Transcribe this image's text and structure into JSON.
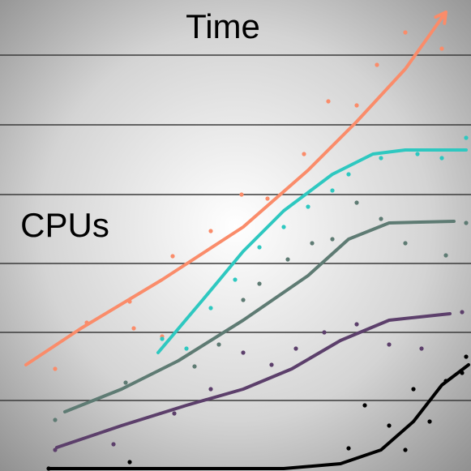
{
  "chart_data": {
    "type": "line",
    "title": "Time",
    "annotation": "CPUs",
    "xlim": [
      0,
      581
    ],
    "ylim": [
      0,
      581
    ],
    "yticks": [
      87,
      171,
      256,
      341,
      427,
      513
    ],
    "grid": true,
    "tick_labels": false,
    "series": [
      {
        "color": "#fa8c6a",
        "arrow": true,
        "x": [
          32,
          100,
          200,
          300,
          380,
          440,
          500,
          550
        ],
        "values": [
          131,
          176,
          236,
          301,
          371,
          431,
          496,
          566
        ],
        "points_x": [
          68,
          107,
          160,
          165,
          200,
          213,
          260,
          298,
          330,
          375,
          405,
          440,
          465,
          500,
          545
        ],
        "points_y": [
          126,
          183,
          209,
          176,
          166,
          265,
          296,
          341,
          336,
          391,
          456,
          451,
          501,
          541,
          521
        ]
      },
      {
        "color": "#2ec8c0",
        "x": [
          195,
          250,
          300,
          350,
          410,
          460,
          500,
          575
        ],
        "values": [
          146,
          211,
          271,
          321,
          366,
          391,
          396,
          396
        ],
        "points_x": [
          200,
          230,
          260,
          290,
          320,
          350,
          380,
          410,
          430,
          470,
          515,
          575,
          545
        ],
        "points_y": [
          163,
          151,
          201,
          236,
          276,
          301,
          326,
          346,
          366,
          386,
          391,
          411,
          386
        ]
      },
      {
        "color": "#5e7b73",
        "x": [
          80,
          150,
          220,
          300,
          380,
          430,
          480,
          560
        ],
        "values": [
          73,
          101,
          136,
          186,
          241,
          286,
          306,
          308
        ],
        "points_x": [
          68,
          155,
          240,
          270,
          300,
          320,
          355,
          385,
          410,
          440,
          470,
          500,
          550,
          575
        ],
        "points_y": [
          63,
          109,
          129,
          156,
          211,
          231,
          261,
          281,
          286,
          331,
          311,
          281,
          266,
          306
        ]
      },
      {
        "color": "#5c3f6b",
        "x": [
          70,
          150,
          230,
          300,
          360,
          420,
          480,
          555
        ],
        "values": [
          29,
          56,
          81,
          101,
          126,
          161,
          186,
          194
        ],
        "points_x": [
          68,
          140,
          215,
          260,
          300,
          335,
          365,
          400,
          440,
          480,
          520,
          570
        ],
        "points_y": [
          26,
          33,
          71,
          101,
          146,
          131,
          151,
          171,
          181,
          156,
          151,
          196
        ]
      },
      {
        "color": "#000000",
        "x": [
          60,
          200,
          350,
          420,
          470,
          510,
          545,
          578
        ],
        "values": [
          3,
          3,
          3,
          9,
          26,
          61,
          106,
          131
        ],
        "points_x": [
          60,
          160,
          430,
          450,
          480,
          500,
          510,
          530,
          550,
          570,
          575
        ],
        "points_y": [
          3,
          11,
          28,
          81,
          56,
          26,
          101,
          61,
          111,
          121,
          141
        ]
      }
    ]
  }
}
